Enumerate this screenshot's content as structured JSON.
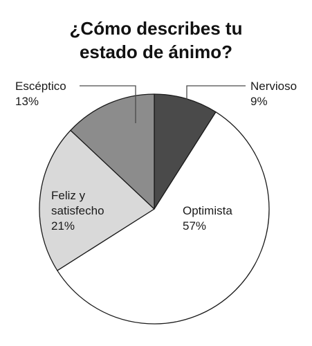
{
  "chart_data": {
    "type": "pie",
    "title_lines": [
      "¿Cómo describes tu",
      "estado de ánimo?"
    ],
    "slices": [
      {
        "label_lines": [
          "Nervioso"
        ],
        "value_text": "9%",
        "value": 9,
        "color": "#4a4a4a"
      },
      {
        "label_lines": [
          "Optimista"
        ],
        "value_text": "57%",
        "value": 57,
        "color": "#ffffff"
      },
      {
        "label_lines": [
          "Feliz y",
          "satisfecho"
        ],
        "value_text": "21%",
        "value": 21,
        "color": "#d9d9d9"
      },
      {
        "label_lines": [
          "Escéptico"
        ],
        "value_text": "13%",
        "value": 13,
        "color": "#8c8c8c"
      }
    ],
    "start_position": "top",
    "direction": "clockwise",
    "legend": "none"
  }
}
